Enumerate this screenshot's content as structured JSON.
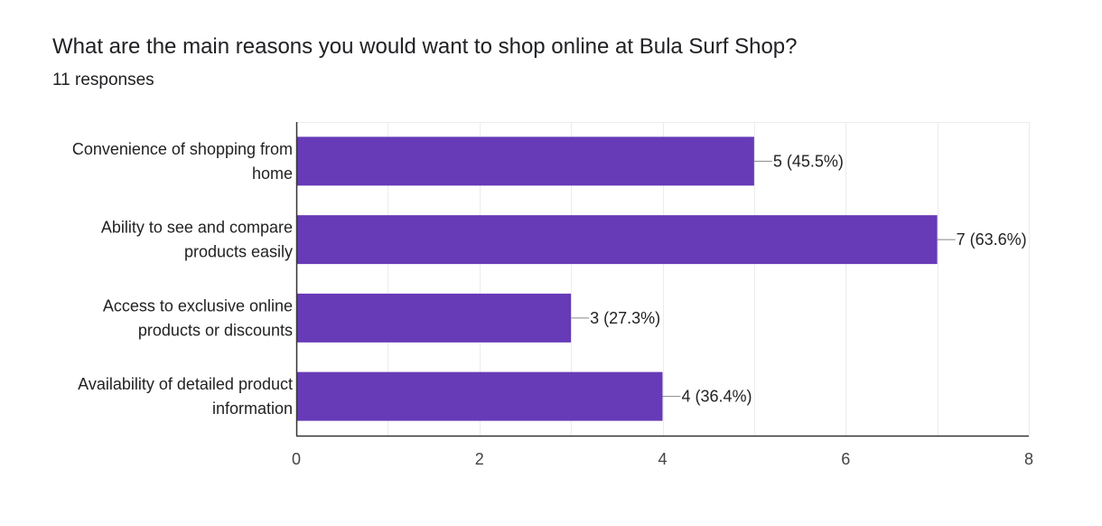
{
  "header": {
    "title": "What are the main reasons you would want to shop online at Bula Surf Shop?",
    "responses": "11 responses"
  },
  "colors": {
    "bar": "#673ab7",
    "grid": "#ececec",
    "axis": "#333333",
    "connector": "#888888"
  },
  "chart_data": {
    "type": "bar",
    "orientation": "horizontal",
    "categories": [
      [
        "Convenience of shopping from",
        "home"
      ],
      [
        "Ability to see and compare",
        "products easily"
      ],
      [
        "Access to exclusive online",
        "products or discounts"
      ],
      [
        "Availability of detailed product",
        "information"
      ]
    ],
    "values": [
      5,
      7,
      3,
      4
    ],
    "data_labels": [
      "5 (45.5%)",
      "7 (63.6%)",
      "3 (27.3%)",
      "4 (36.4%)"
    ],
    "xlim": [
      0,
      8
    ],
    "x_ticks": [
      0,
      2,
      4,
      6,
      8
    ],
    "x_minor_grid": [
      1,
      3,
      5,
      7
    ],
    "grid": true,
    "legend": "none"
  }
}
